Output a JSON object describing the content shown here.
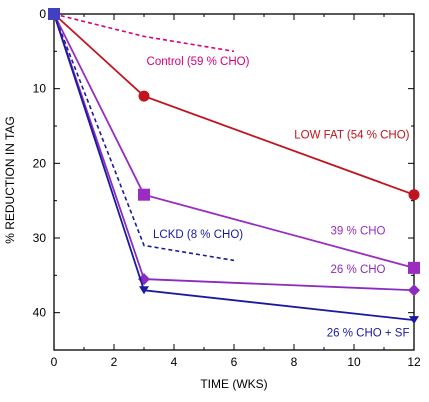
{
  "chart_data": {
    "type": "line",
    "xlabel": "TIME (WKS)",
    "ylabel": "% REDUCTION IN TAG",
    "xlim": [
      0,
      12
    ],
    "ylim": [
      0,
      45
    ],
    "y_inverted": true,
    "grid": false,
    "xticks": [
      0,
      2,
      4,
      6,
      8,
      10,
      12
    ],
    "yticks": [
      0,
      10,
      20,
      30,
      40
    ],
    "series": [
      {
        "name": "Control (59 % CHO)",
        "color": "#d6007a",
        "dash": "dashed",
        "marker": "none",
        "x": [
          0,
          3,
          6
        ],
        "y": [
          0,
          3,
          5
        ]
      },
      {
        "name": "LOW FAT (54 % CHO)",
        "color": "#c0141e",
        "dash": "solid",
        "marker": "circle",
        "x": [
          0,
          3,
          12
        ],
        "y": [
          0,
          11,
          24.2
        ]
      },
      {
        "name": "39 % CHO",
        "color": "#9a2cc0",
        "dash": "solid",
        "marker": "square",
        "x": [
          0,
          3,
          12
        ],
        "y": [
          0,
          24.2,
          34
        ]
      },
      {
        "name": "LCKD (8 % CHO)",
        "color": "#1a1aa0",
        "dash": "dashed",
        "marker": "none",
        "x": [
          0,
          3,
          6
        ],
        "y": [
          0,
          31,
          33
        ]
      },
      {
        "name": "26 % CHO",
        "color": "#8a2cc0",
        "dash": "solid",
        "marker": "diamond",
        "x": [
          0,
          3,
          12
        ],
        "y": [
          0,
          35.5,
          37
        ]
      },
      {
        "name": "26 % CHO + SF",
        "color": "#1a1aa0",
        "dash": "solid",
        "marker": "triangle-down",
        "x": [
          0,
          3,
          12
        ],
        "y": [
          0,
          37,
          41
        ]
      }
    ]
  }
}
